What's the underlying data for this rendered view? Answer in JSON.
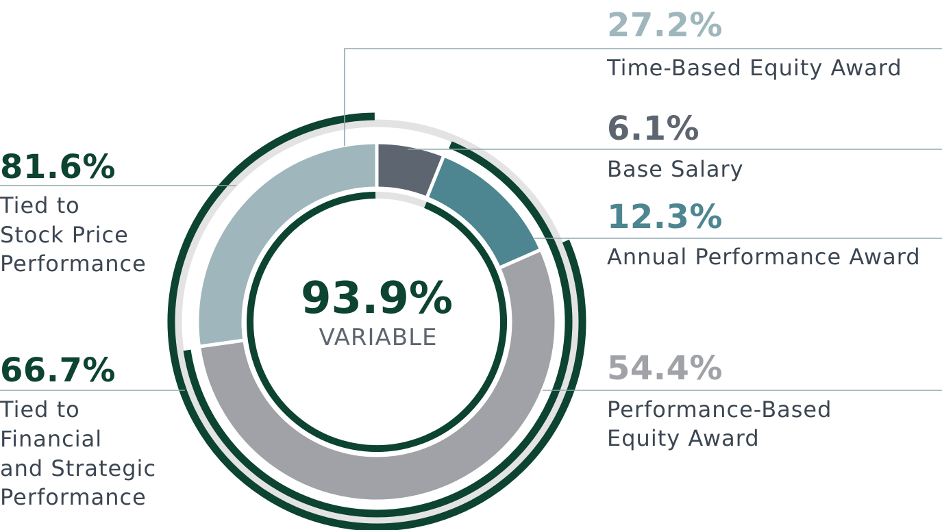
{
  "chart_data": {
    "type": "pie",
    "title": "",
    "center": {
      "value": "93.9%",
      "label": "VARIABLE"
    },
    "segments": [
      {
        "name": "Base Salary",
        "value": 6.1,
        "value_label": "6.1%",
        "color": "#5d6670",
        "side": "right"
      },
      {
        "name": "Annual Performance Award",
        "value": 12.3,
        "value_label": "12.3%",
        "color": "#4d8690",
        "side": "right"
      },
      {
        "name": "Performance-Based Equity Award",
        "value": 54.4,
        "value_label": "54.4%",
        "color": "#a0a2a8",
        "side": "right"
      },
      {
        "name": "Time-Based Equity Award",
        "value": 27.2,
        "value_label": "27.2%",
        "color": "#9fb6bd",
        "side": "right"
      }
    ],
    "rings": [
      {
        "name": "Tied to Stock Price Performance",
        "value": 81.6,
        "value_label": "81.6%",
        "label_lines": [
          "Tied to",
          "Stock Price",
          "Performance"
        ],
        "covers": [
          "Performance-Based Equity Award",
          "Time-Based Equity Award"
        ]
      },
      {
        "name": "Tied to Financial and Strategic Performance",
        "value": 66.7,
        "value_label": "66.7%",
        "label_lines": [
          "Tied to",
          "Financial",
          "and Strategic",
          "Performance"
        ],
        "covers": [
          "Annual Performance Award",
          "Performance-Based Equity Award"
        ]
      },
      {
        "name": "Variable",
        "value": 93.9,
        "value_label": "93.9%",
        "covers": [
          "Annual Performance Award",
          "Performance-Based Equity Award",
          "Time-Based Equity Award"
        ]
      }
    ],
    "colors": {
      "ring": "#0c4331",
      "ring_background": "#e3e3e3",
      "leader": "#8fa8ae"
    }
  }
}
